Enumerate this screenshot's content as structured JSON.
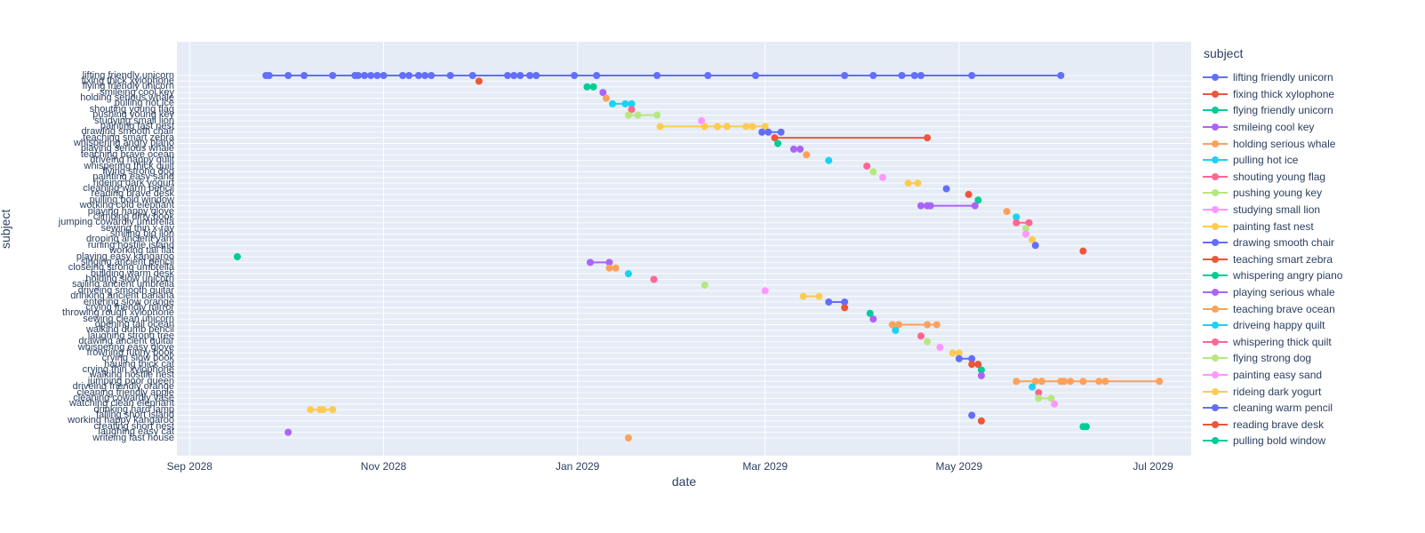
{
  "figure": {
    "x_axis": {
      "title": "date",
      "ticks": [
        "Sep 2028",
        "Nov 2028",
        "Jan 2029",
        "Mar 2029",
        "May 2029",
        "Jul 2029"
      ],
      "tick_dates": [
        "2028-09-01",
        "2028-11-01",
        "2029-01-01",
        "2029-03-01",
        "2029-05-01",
        "2029-07-01"
      ]
    },
    "y_axis": {
      "title": "subject"
    },
    "legend": {
      "title": "subject",
      "max_visible_entries": 23
    },
    "colors": {
      "plot_background": "#E5ECF6",
      "grid": "#FFFFFF",
      "text": "#2a3f5f"
    }
  },
  "chart_data": {
    "type": "scatter",
    "mode": "lines+markers",
    "x_range": [
      "2028-08-28",
      "2029-07-13"
    ],
    "grid": "on",
    "legend_position": "right",
    "palette": [
      "#636EFA",
      "#EF553B",
      "#00CC96",
      "#AB63FA",
      "#FFA15A",
      "#19D3F3",
      "#FF6692",
      "#B6E880",
      "#FF97FF",
      "#FECB52"
    ],
    "series": [
      {
        "name": "lifting friendly unicorn",
        "dates": [
          "2028-09-25",
          "2028-09-26",
          "2028-10-02",
          "2028-10-07",
          "2028-10-16",
          "2028-10-23",
          "2028-10-24",
          "2028-10-26",
          "2028-10-28",
          "2028-10-30",
          "2028-11-01",
          "2028-11-07",
          "2028-11-09",
          "2028-11-12",
          "2028-11-14",
          "2028-11-16",
          "2028-11-22",
          "2028-11-29",
          "2028-12-10",
          "2028-12-12",
          "2028-12-14",
          "2028-12-17",
          "2028-12-19",
          "2028-12-31",
          "2029-01-07",
          "2029-01-26",
          "2029-02-11",
          "2029-02-26",
          "2029-03-26",
          "2029-04-04",
          "2029-04-13",
          "2029-04-17",
          "2029-04-19",
          "2029-05-05",
          "2029-06-02"
        ]
      },
      {
        "name": "fixing thick xylophone",
        "dates": [
          "2028-12-01"
        ]
      },
      {
        "name": "flying friendly unicorn",
        "dates": [
          "2029-01-04",
          "2029-01-06"
        ]
      },
      {
        "name": "smileing cool key",
        "dates": [
          "2029-01-09"
        ]
      },
      {
        "name": "holding serious whale",
        "dates": [
          "2029-01-10"
        ]
      },
      {
        "name": "pulling hot ice",
        "dates": [
          "2029-01-12",
          "2029-01-16",
          "2029-01-18"
        ]
      },
      {
        "name": "shouting young flag",
        "dates": [
          "2029-01-18"
        ]
      },
      {
        "name": "pushing young key",
        "dates": [
          "2029-01-17",
          "2029-01-20",
          "2029-01-26"
        ]
      },
      {
        "name": "studying small lion",
        "dates": [
          "2029-02-09"
        ]
      },
      {
        "name": "painting fast nest",
        "dates": [
          "2029-01-27",
          "2029-02-10",
          "2029-02-14",
          "2029-02-17",
          "2029-02-23",
          "2029-02-25",
          "2029-03-01"
        ]
      },
      {
        "name": "drawing smooth chair",
        "dates": [
          "2029-02-28",
          "2029-03-02",
          "2029-03-06"
        ]
      },
      {
        "name": "teaching smart zebra",
        "dates": [
          "2029-03-04",
          "2029-04-21"
        ]
      },
      {
        "name": "whispering angry piano",
        "dates": [
          "2029-03-05"
        ]
      },
      {
        "name": "playing serious whale",
        "dates": [
          "2029-03-10",
          "2029-03-12"
        ]
      },
      {
        "name": "teaching brave ocean",
        "dates": [
          "2029-03-14"
        ]
      },
      {
        "name": "driveing happy quilt",
        "dates": [
          "2029-03-21"
        ]
      },
      {
        "name": "whispering thick quilt",
        "dates": [
          "2029-04-02"
        ]
      },
      {
        "name": "flying strong dog",
        "dates": [
          "2029-04-04"
        ]
      },
      {
        "name": "painting easy sand",
        "dates": [
          "2029-04-07"
        ]
      },
      {
        "name": "rideing dark yogurt",
        "dates": [
          "2029-04-15",
          "2029-04-18"
        ]
      },
      {
        "name": "cleaning warm pencil",
        "dates": [
          "2029-04-27"
        ]
      },
      {
        "name": "reading brave desk",
        "dates": [
          "2029-05-04"
        ]
      },
      {
        "name": "pulling bold window",
        "dates": [
          "2029-05-07"
        ]
      },
      {
        "name": "working cold elephant",
        "dates": [
          "2029-04-19",
          "2029-04-21",
          "2029-04-22",
          "2029-05-06"
        ]
      },
      {
        "name": "playing happy glove",
        "dates": [
          "2029-05-16"
        ]
      },
      {
        "name": "climbing dirty book",
        "dates": [
          "2029-05-19"
        ]
      },
      {
        "name": "jumping cowardly umbrella",
        "dates": [
          "2029-05-19",
          "2029-05-23"
        ]
      },
      {
        "name": "sewing thin x-ray",
        "dates": [
          "2029-05-22"
        ]
      },
      {
        "name": "smiling big lion",
        "dates": [
          "2029-05-22"
        ]
      },
      {
        "name": "droping ancient yam",
        "dates": [
          "2029-05-24"
        ]
      },
      {
        "name": "runing hostile island",
        "dates": [
          "2029-05-25"
        ]
      },
      {
        "name": "working tall flat",
        "dates": [
          "2029-06-09"
        ]
      },
      {
        "name": "playing easy kangaroo",
        "dates": [
          "2028-09-16"
        ]
      },
      {
        "name": "singing ancient pencil",
        "dates": [
          "2029-01-05",
          "2029-01-11"
        ]
      },
      {
        "name": "closeing strong umbrella",
        "dates": [
          "2029-01-11",
          "2029-01-13"
        ]
      },
      {
        "name": "building warm desk",
        "dates": [
          "2029-01-17"
        ]
      },
      {
        "name": "holding slow unicorn",
        "dates": [
          "2029-01-25"
        ]
      },
      {
        "name": "sailing ancient umbrella",
        "dates": [
          "2029-02-10"
        ]
      },
      {
        "name": "driveing smooth guitar",
        "dates": [
          "2029-03-01"
        ]
      },
      {
        "name": "drinking ancient banana",
        "dates": [
          "2029-03-13",
          "2029-03-18"
        ]
      },
      {
        "name": "entering slow orange",
        "dates": [
          "2029-03-21",
          "2029-03-26"
        ]
      },
      {
        "name": "crying friendly mirror",
        "dates": [
          "2029-03-26"
        ]
      },
      {
        "name": "throwing rough xylophone",
        "dates": [
          "2029-04-03"
        ]
      },
      {
        "name": "sewing clean unicorn",
        "dates": [
          "2029-04-04"
        ]
      },
      {
        "name": "opening tall ocean",
        "dates": [
          "2029-04-10",
          "2029-04-12",
          "2029-04-21",
          "2029-04-24"
        ]
      },
      {
        "name": "walking dumb pencil",
        "dates": [
          "2029-04-11"
        ]
      },
      {
        "name": "laughing strong tree",
        "dates": [
          "2029-04-19"
        ]
      },
      {
        "name": "drawing ancient guitar",
        "dates": [
          "2029-04-21"
        ]
      },
      {
        "name": "whispering easy glove",
        "dates": [
          "2029-04-25"
        ]
      },
      {
        "name": "frowning funny book",
        "dates": [
          "2029-04-29",
          "2029-05-01"
        ]
      },
      {
        "name": "crying slow book",
        "dates": [
          "2029-05-01",
          "2029-05-05"
        ]
      },
      {
        "name": "hauling thick cat",
        "dates": [
          "2029-05-05",
          "2029-05-07"
        ]
      },
      {
        "name": "crying thin xylophone",
        "dates": [
          "2029-05-08"
        ]
      },
      {
        "name": "walking hostile nest",
        "dates": [
          "2029-05-08"
        ]
      },
      {
        "name": "jumping poor queen",
        "dates": [
          "2029-05-19",
          "2029-05-25",
          "2029-05-27",
          "2029-06-02",
          "2029-06-03",
          "2029-06-05",
          "2029-06-09",
          "2029-06-14",
          "2029-06-16",
          "2029-07-03"
        ]
      },
      {
        "name": "driveing friendly orange",
        "dates": [
          "2029-05-24"
        ]
      },
      {
        "name": "cleaning friendly apple",
        "dates": [
          "2029-05-26"
        ]
      },
      {
        "name": "cleaning cowardly vase",
        "dates": [
          "2029-05-26",
          "2029-05-30"
        ]
      },
      {
        "name": "watching clean elephant",
        "dates": [
          "2029-05-31"
        ]
      },
      {
        "name": "drinking hard lamp",
        "dates": [
          "2028-10-09",
          "2028-10-12",
          "2028-10-13",
          "2028-10-16"
        ]
      },
      {
        "name": "falling short island",
        "dates": [
          "2029-05-05"
        ]
      },
      {
        "name": "working happy kangaroo",
        "dates": [
          "2029-05-08"
        ]
      },
      {
        "name": "creating short nest",
        "dates": [
          "2029-06-09",
          "2029-06-10"
        ]
      },
      {
        "name": "laughing easy cat",
        "dates": [
          "2028-10-02"
        ]
      },
      {
        "name": "writeing fast house",
        "dates": [
          "2029-01-17"
        ]
      }
    ]
  }
}
